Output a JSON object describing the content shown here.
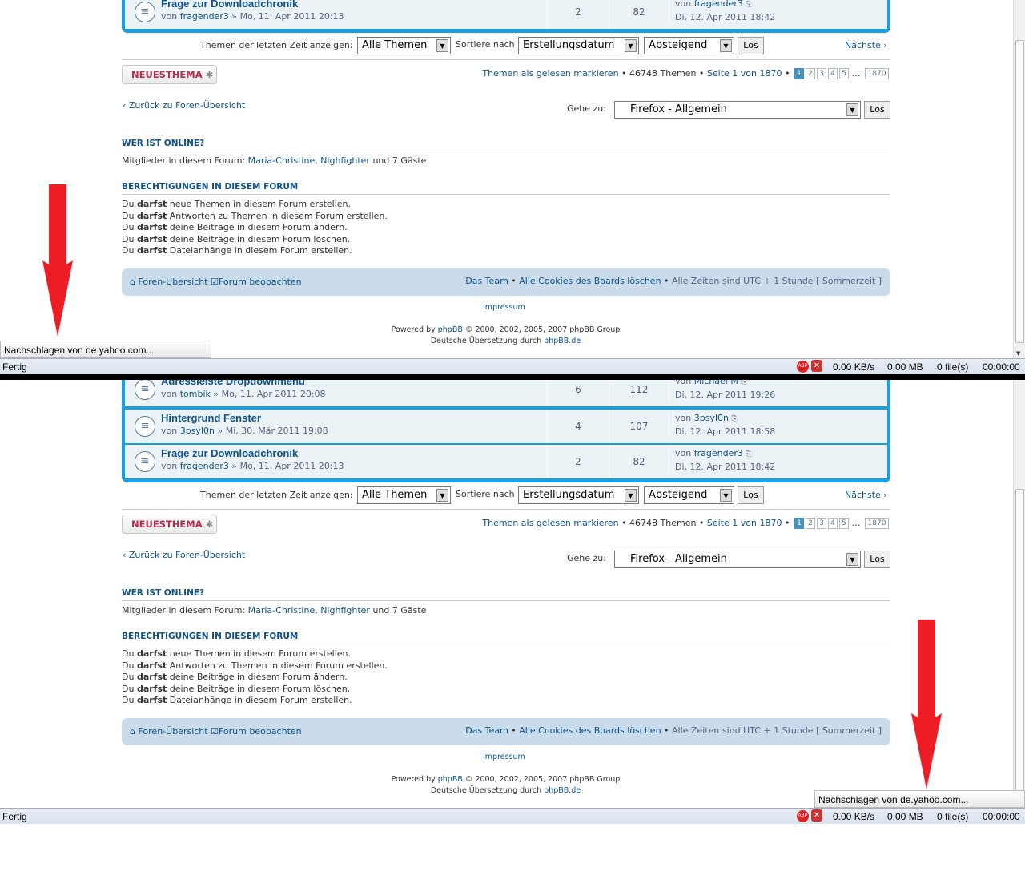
{
  "topics": [
    {
      "title": "Adressleiste Dropdownmenü",
      "author": "tombik",
      "date": "Mo, 11. Apr 2011 20:08",
      "replies": "6",
      "views": "112",
      "last_by": "Michael M",
      "last_date": "Di, 12. Apr 2011 19:26"
    },
    {
      "title": "Hintergrund Fenster",
      "author": "3psyl0n",
      "date": "Mi, 30. Mär 2011 19:08",
      "replies": "4",
      "views": "107",
      "last_by": "3psyl0n",
      "last_date": "Di, 12. Apr 2011 18:58"
    },
    {
      "title": "Frage zur Downloadchronik",
      "author": "fragender3",
      "date": "Mo, 11. Apr 2011 20:13",
      "replies": "2",
      "views": "82",
      "last_by": "fragender3",
      "last_date": "Di, 12. Apr 2011 18:42"
    }
  ],
  "by_prefix": "von",
  "filter": {
    "label": "Themen der letzten Zeit anzeigen:",
    "days": "Alle Themen",
    "sort_label": "Sortiere nach",
    "sort_by": "Erstellungsdatum",
    "order": "Absteigend",
    "go": "Los",
    "next": "Nächste ›"
  },
  "new_topic": "NEUESTHEMA",
  "pagination": {
    "mark_read": "Themen als gelesen markieren",
    "topics": "46748 Themen",
    "page": "Seite 1 von 1870",
    "pages": [
      "1",
      "2",
      "3",
      "4",
      "5"
    ],
    "ellipsis": "…",
    "last": "1870"
  },
  "back": "‹ Zurück zu Foren-Übersicht",
  "jump": {
    "label": "Gehe zu:",
    "value": "Firefox - Allgemein",
    "go": "Los"
  },
  "online": {
    "title": "WER IST ONLINE?",
    "prefix": "Mitglieder in diesem Forum:",
    "users": "Maria-Christine, Nighfighter",
    "suffix": "und 7 Gäste"
  },
  "perms": {
    "title": "BERECHTIGUNGEN IN DIESEM FORUM",
    "lines": [
      {
        "a": "Du",
        "b": "darfst",
        "c": "neue Themen in diesem Forum erstellen."
      },
      {
        "a": "Du",
        "b": "darfst",
        "c": "Antworten zu Themen in diesem Forum erstellen."
      },
      {
        "a": "Du",
        "b": "darfst",
        "c": "deine Beiträge in diesem Forum ändern."
      },
      {
        "a": "Du",
        "b": "darfst",
        "c": "deine Beiträge in diesem Forum löschen."
      },
      {
        "a": "Du",
        "b": "darfst",
        "c": "Dateianhänge in diesem Forum erstellen."
      }
    ]
  },
  "navbar": {
    "home": "Foren-Übersicht",
    "watch": "Forum beobachten",
    "team": "Das Team",
    "cookies": "Alle Cookies des Boards löschen",
    "tz": "Alle Zeiten sind UTC + 1 Stunde [ Sommerzeit ]"
  },
  "footer": {
    "impressum": "Impressum",
    "powered": "Powered by",
    "phpbb": "phpBB",
    "copy": "© 2000, 2002, 2005, 2007 phpBB Group",
    "de": "Deutsche Übersetzung durch",
    "phpbbde": "phpBB.de"
  },
  "status": {
    "text": "Fertig",
    "rate": "0.00 KB/s",
    "size": "0.00 MB",
    "files": "0 file(s)",
    "time": "00:00:00"
  },
  "tooltip": "Nachschlagen von de.yahoo.com...",
  "colors": {
    "arrow": "#ee1c25",
    "forum_border": "#1a9fe3",
    "link": "#105289"
  }
}
